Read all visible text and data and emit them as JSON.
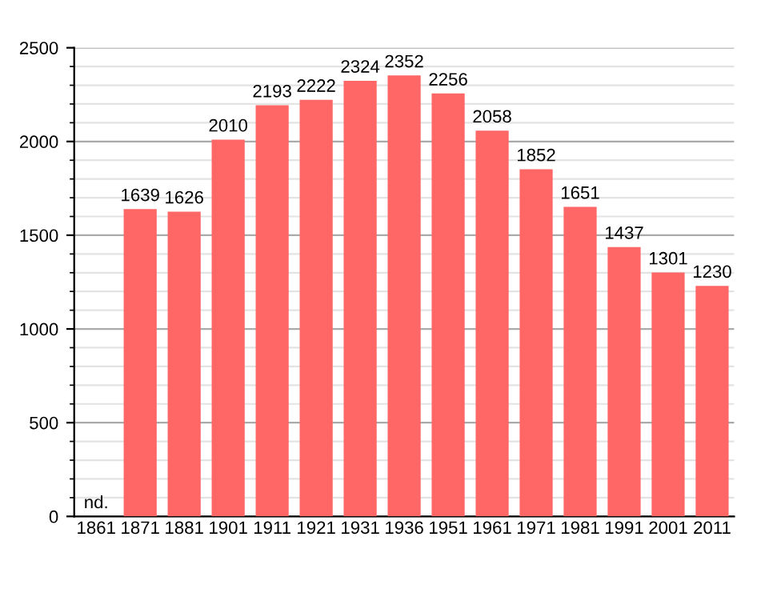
{
  "chart_data": {
    "type": "bar",
    "categories": [
      "1861",
      "1871",
      "1881",
      "1901",
      "1911",
      "1921",
      "1931",
      "1936",
      "1951",
      "1961",
      "1971",
      "1981",
      "1991",
      "2001",
      "2011"
    ],
    "values": [
      null,
      1639,
      1626,
      2010,
      2193,
      2222,
      2324,
      2352,
      2256,
      2058,
      1852,
      1651,
      1437,
      1301,
      1230
    ],
    "value_labels": [
      "nd.",
      "1639",
      "1626",
      "2010",
      "2193",
      "2222",
      "2324",
      "2352",
      "2256",
      "2058",
      "1852",
      "1651",
      "1437",
      "1301",
      "1230"
    ],
    "color": "#ff6666",
    "ylim": [
      0,
      2500
    ],
    "yticks": [
      0,
      500,
      1000,
      1500,
      2000,
      2500
    ],
    "grid": "y"
  }
}
